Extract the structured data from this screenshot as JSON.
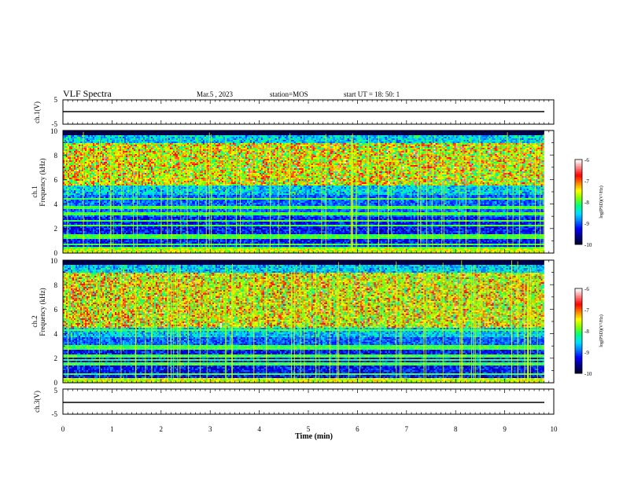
{
  "header": {
    "title": "VLF Spectra",
    "date": "Mar.5 , 2023",
    "station": "station=MOS",
    "start": "start UT = 18: 50: 1"
  },
  "colors": {
    "colormap": [
      "#000033",
      "#000088",
      "#0000ff",
      "#0080ff",
      "#00e0ff",
      "#00ff80",
      "#80ff00",
      "#ffff00",
      "#ff8000",
      "#ff0000",
      "#ff8080",
      "#ffffff"
    ]
  },
  "chart_data": [
    {
      "type": "line",
      "id": "ch1-waveform",
      "ylabel": "ch.1(V)",
      "ylim": [
        -5,
        5
      ],
      "y_ticks": [
        "5",
        "-5"
      ],
      "x": [
        0,
        10
      ],
      "values": [
        0,
        0
      ],
      "xlim": [
        0,
        10
      ]
    },
    {
      "type": "heatmap",
      "id": "ch1-spectrogram",
      "ylabel": [
        "ch.1",
        "Frequency (kHz)"
      ],
      "ylim": [
        0,
        10
      ],
      "y_ticks": [
        "0",
        "2",
        "4",
        "6",
        "8",
        "10"
      ],
      "xlim": [
        0,
        10
      ],
      "data_extent_min": 9.8,
      "intensity_band_khz": [
        5.5,
        9.0
      ],
      "colorbar": {
        "label": "log(PSD)(V²/Hz)",
        "range": [
          -10,
          -6
        ],
        "ticks": [
          "-6",
          "-7",
          "-8",
          "-9",
          "-10"
        ]
      }
    },
    {
      "type": "heatmap",
      "id": "ch2-spectrogram",
      "ylabel": [
        "ch.2",
        "Frequency (kHz)"
      ],
      "ylim": [
        0,
        10
      ],
      "y_ticks": [
        "0",
        "2",
        "4",
        "6",
        "8",
        "10"
      ],
      "xlim": [
        0,
        10
      ],
      "data_extent_min": 9.8,
      "intensity_band_khz": [
        4.5,
        9.0
      ],
      "colorbar": {
        "label": "log(PSD)(V²/Hz)",
        "range": [
          -10,
          -6
        ],
        "ticks": [
          "-6",
          "-7",
          "-8",
          "-9",
          "-10"
        ]
      }
    },
    {
      "type": "line",
      "id": "ch3-waveform",
      "ylabel": "ch.3(V)",
      "ylim": [
        -5,
        5
      ],
      "y_ticks": [
        "5",
        "-5"
      ],
      "x": [
        0,
        10
      ],
      "values": [
        0,
        0
      ],
      "xlim": [
        0,
        10
      ],
      "xlabel": "Time (min)",
      "x_ticks": [
        "0",
        "1",
        "2",
        "3",
        "4",
        "5",
        "6",
        "7",
        "8",
        "9",
        "10"
      ]
    }
  ]
}
